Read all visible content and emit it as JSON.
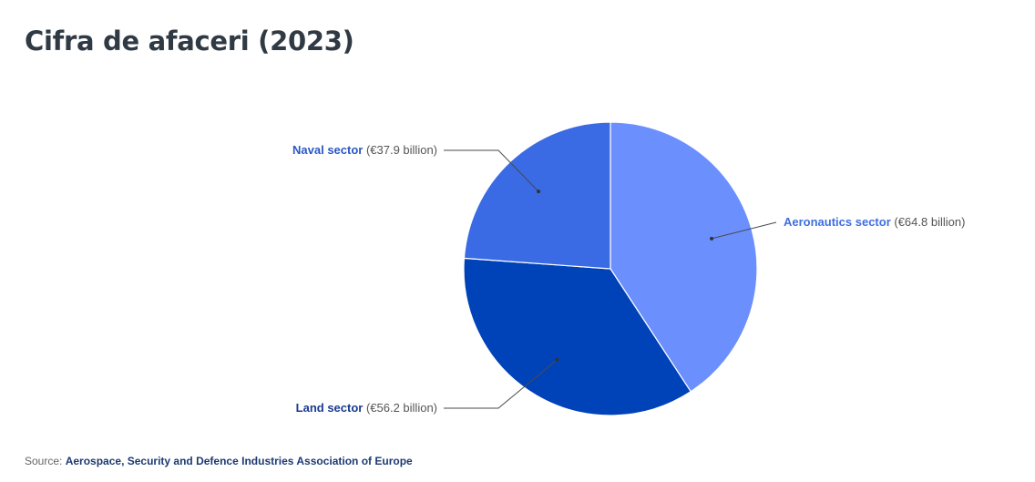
{
  "title": "Cifra de afaceri (2023)",
  "source": {
    "prefix": "Source:",
    "name": "Aerospace, Security and Defence Industries Association of Europe"
  },
  "chart_data": {
    "type": "pie",
    "unit": "€ billion",
    "slices": [
      {
        "label": "Aeronautics sector",
        "value": 64.8,
        "value_text": "(€64.8 billion)",
        "color": "#6b8ffd",
        "label_color": "#3f6fe0"
      },
      {
        "label": "Land sector",
        "value": 56.2,
        "value_text": "(€56.2 billion)",
        "color": "#0043b8",
        "label_color": "#1a3c91"
      },
      {
        "label": "Naval sector",
        "value": 37.9,
        "value_text": "(€37.9 billion)",
        "color": "#3a6ae4",
        "label_color": "#2b57c4"
      }
    ]
  }
}
